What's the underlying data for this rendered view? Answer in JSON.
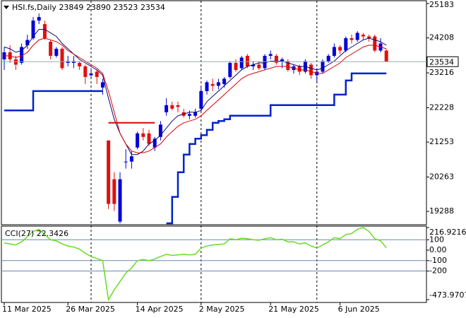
{
  "chart_data": [
    {
      "type": "candlestick",
      "title": "HSI.fs,Daily",
      "categories": [
        "11 Mar 2025",
        null,
        null,
        null,
        null,
        null,
        null,
        null,
        null,
        null,
        null,
        "26 Mar 2025",
        null,
        null,
        null,
        null,
        null,
        null,
        null,
        null,
        null,
        null,
        null,
        "14 Apr 2025",
        null,
        null,
        null,
        null,
        null,
        null,
        null,
        null,
        null,
        null,
        "2 May 2025",
        null,
        null,
        null,
        null,
        null,
        null,
        null,
        null,
        null,
        null,
        null,
        "21 May 2025",
        null,
        null,
        null,
        null,
        null,
        null,
        null,
        null,
        null,
        null,
        null,
        "6 Jun 2025",
        null,
        null,
        null,
        null,
        null,
        null,
        null,
        null
      ],
      "open": [
        23600,
        23800,
        23600,
        23500,
        24000,
        24200,
        24700,
        24600,
        24100,
        23700,
        23900,
        23500,
        23500,
        23500,
        23400,
        23150,
        23250,
        22800,
        21300,
        20200,
        19000,
        20700,
        20700,
        21100,
        21500,
        21500,
        21100,
        21400,
        22100,
        22300,
        22300,
        22100,
        22000,
        22000,
        22200,
        22700,
        22900,
        22850,
        22900,
        23100,
        23500,
        23350,
        23700,
        23400,
        23450,
        23350,
        23700,
        23700,
        23550,
        23550,
        23300,
        23400,
        23250,
        23450,
        23150,
        23250,
        23550,
        23700,
        23950,
        23850,
        24200,
        24150,
        24300,
        24250,
        24250,
        23850,
        23849
      ],
      "high": [
        23950,
        24000,
        23700,
        24050,
        24300,
        24800,
        24900,
        24700,
        24150,
        23950,
        23950,
        23700,
        23700,
        23550,
        23450,
        23350,
        23300,
        23050,
        21300,
        20400,
        20400,
        21050,
        21000,
        21550,
        21650,
        21600,
        21400,
        21850,
        22500,
        22400,
        22400,
        22200,
        22150,
        22200,
        22800,
        23000,
        23050,
        23050,
        23100,
        23550,
        23600,
        23700,
        23750,
        23550,
        23550,
        23750,
        23850,
        23750,
        23650,
        23600,
        23450,
        23450,
        23600,
        23500,
        23350,
        23600,
        23750,
        24050,
        24000,
        24250,
        24300,
        24400,
        24350,
        24300,
        24300,
        24200,
        23890
      ],
      "low": [
        23300,
        23500,
        23300,
        23450,
        23900,
        24150,
        24600,
        24150,
        23600,
        23650,
        23300,
        23400,
        23350,
        23300,
        22900,
        23100,
        22900,
        22600,
        19350,
        19300,
        18950,
        20500,
        20500,
        21050,
        21300,
        21150,
        21000,
        21300,
        22000,
        22150,
        22100,
        21950,
        21900,
        21950,
        22150,
        22600,
        22700,
        22750,
        22800,
        23050,
        23250,
        23300,
        23350,
        23300,
        23300,
        23300,
        23600,
        23450,
        23350,
        23250,
        23200,
        23150,
        23200,
        23050,
        22950,
        23200,
        23500,
        23650,
        23750,
        23800,
        24050,
        24100,
        24150,
        24100,
        23800,
        23800,
        23523
      ],
      "close": [
        23800,
        23600,
        23450,
        23950,
        24150,
        24700,
        24800,
        24200,
        23700,
        23900,
        23350,
        23550,
        23550,
        23400,
        23100,
        23200,
        23100,
        22950,
        19500,
        19500,
        20200,
        20700,
        20850,
        21500,
        21400,
        21200,
        21350,
        21750,
        22300,
        22200,
        22250,
        22000,
        22050,
        22100,
        22700,
        22950,
        22850,
        22950,
        23050,
        23500,
        23300,
        23650,
        23400,
        23450,
        23350,
        23700,
        23750,
        23500,
        23600,
        23300,
        23400,
        23250,
        23550,
        23150,
        23250,
        23550,
        23700,
        23950,
        23850,
        24200,
        24150,
        24350,
        24250,
        24200,
        23850,
        24050,
        23534
      ],
      "up_color": "#0000d8",
      "down_color": "#e01010",
      "overlays": [
        {
          "color": "#0a0a70",
          "width": 1,
          "values": [
            23950,
            23900,
            23800,
            23850,
            24000,
            24250,
            24450,
            24450,
            24350,
            24250,
            24050,
            23900,
            23750,
            23600,
            23500,
            23400,
            23300,
            23150,
            22500,
            21900,
            21500,
            21200,
            20900,
            20900,
            21000,
            21200,
            21300,
            21450,
            21650,
            21850,
            22000,
            22050,
            22100,
            22100,
            22150,
            22400,
            22550,
            22700,
            22850,
            23000,
            23150,
            23300,
            23400,
            23450,
            23500,
            23500,
            23550,
            23550,
            23550,
            23500,
            23450,
            23400,
            23400,
            23350,
            23300,
            23350,
            23450,
            23550,
            23700,
            23850,
            23950,
            24050,
            24150,
            24200,
            24150,
            24100,
            24000
          ]
        },
        {
          "color": "#dd0000",
          "width": 1,
          "values": [
            23700,
            23700,
            23650,
            23700,
            23800,
            24000,
            24150,
            24200,
            24150,
            24100,
            24000,
            23850,
            23750,
            23650,
            23550,
            23450,
            23350,
            23200,
            22700,
            22100,
            21500,
            21200,
            21000,
            20950,
            20950,
            21000,
            21100,
            21200,
            21400,
            21550,
            21700,
            21800,
            21850,
            21900,
            22000,
            22150,
            22300,
            22450,
            22600,
            22750,
            22900,
            23050,
            23150,
            23200,
            23250,
            23300,
            23350,
            23400,
            23400,
            23400,
            23350,
            23300,
            23300,
            23250,
            23200,
            23200,
            23300,
            23400,
            23500,
            23650,
            23750,
            23850,
            23950,
            24000,
            24000,
            23950,
            23900
          ]
        },
        {
          "color": "#0022cc",
          "width": 2.5,
          "step": true,
          "values": [
            22150,
            22150,
            22150,
            22150,
            22150,
            22700,
            22700,
            22700,
            22700,
            22700,
            22700,
            22700,
            22700,
            22700,
            22700,
            22700,
            22700,
            22700,
            null,
            null,
            null,
            null,
            null,
            null,
            null,
            null,
            null,
            null,
            18950,
            19700,
            20400,
            20900,
            21200,
            21350,
            21450,
            21600,
            21800,
            21850,
            21900,
            22000,
            22000,
            22000,
            22000,
            22000,
            22000,
            22000,
            22300,
            22300,
            22300,
            22300,
            22300,
            22300,
            22300,
            22300,
            22300,
            22300,
            22300,
            22600,
            22600,
            23000,
            23200,
            23200,
            23200,
            23200,
            23200,
            23200,
            23200
          ]
        },
        {
          "color": "#dd0000",
          "width": 2,
          "values": [
            null,
            null,
            null,
            null,
            null,
            null,
            null,
            null,
            null,
            null,
            null,
            null,
            null,
            null,
            null,
            null,
            null,
            null,
            21800,
            21800,
            21800,
            21800,
            21800,
            21800,
            21800,
            21800,
            21800,
            null,
            null,
            null,
            null,
            null,
            null,
            null,
            null,
            null,
            null,
            null,
            null,
            null,
            null,
            null,
            null,
            null,
            null,
            null,
            null,
            null,
            null,
            null,
            null,
            null,
            null,
            null,
            null,
            null,
            null,
            null,
            null,
            null,
            null,
            null,
            null,
            null,
            null,
            null,
            null
          ]
        }
      ],
      "ylim": [
        18910,
        25283
      ],
      "yticks": [
        25183,
        24208,
        23216,
        22228,
        21253,
        20263,
        19288
      ]
    },
    {
      "type": "line",
      "title": "CCI(27)",
      "color": "#66dd22",
      "values": [
        70,
        60,
        50,
        80,
        130,
        180,
        200,
        150,
        100,
        90,
        60,
        40,
        30,
        10,
        -30,
        -60,
        -80,
        -100,
        -473.9707,
        -380,
        -300,
        -220,
        -170,
        -100,
        -90,
        -100,
        -85,
        -60,
        -40,
        -50,
        -45,
        -40,
        -45,
        -40,
        20,
        40,
        50,
        55,
        60,
        110,
        100,
        115,
        110,
        100,
        95,
        110,
        120,
        100,
        105,
        80,
        80,
        60,
        70,
        40,
        20,
        50,
        80,
        120,
        110,
        150,
        160,
        200,
        216.9216,
        180,
        110,
        90,
        22.3426
      ],
      "ylim": [
        -473.9707,
        216.9216
      ],
      "yticks": [
        216.9216,
        100,
        {
          "value": 0,
          "label": "0.00"
        },
        -100,
        -200,
        -473.9707
      ],
      "levels": [
        100,
        -100,
        -200
      ]
    }
  ]
}
